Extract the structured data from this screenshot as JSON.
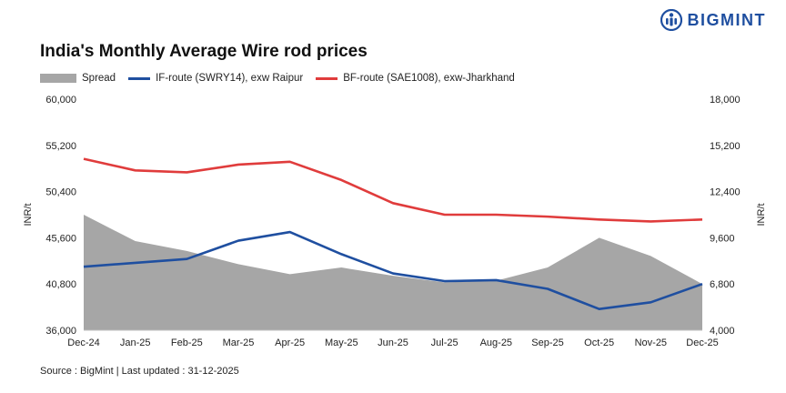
{
  "title": "India's Monthly Average Wire rod prices",
  "brand": {
    "name": "BIGMINT",
    "logo_icon": "bigmint-logo-icon"
  },
  "source": "Source : BigMint | Last updated : 31-12-2025",
  "colors": {
    "spread": "#a6a6a6",
    "if_route": "#1f4fa0",
    "bf_route": "#e03c3c"
  },
  "chart_data": {
    "type": "line",
    "categories": [
      "Dec-24",
      "Jan-25",
      "Feb-25",
      "Mar-25",
      "Apr-25",
      "May-25",
      "Jun-25",
      "Jul-25",
      "Aug-25",
      "Sep-25",
      "Oct-25",
      "Nov-25",
      "Dec-25"
    ],
    "y_left": {
      "label": "INR/t",
      "ticks": [
        "36,000",
        "40,800",
        "45,600",
        "50,400",
        "55,200",
        "60,000"
      ],
      "range": [
        36000,
        60000
      ]
    },
    "y_right": {
      "label": "INR/t",
      "ticks": [
        "4,000",
        "6,800",
        "9,600",
        "12,400",
        "15,200",
        "18,000"
      ],
      "range": [
        4000,
        18000
      ]
    },
    "series": [
      {
        "name": "Spread",
        "kind": "area",
        "axis": "right",
        "values": [
          11000,
          9400,
          8800,
          8000,
          7400,
          7800,
          7300,
          6900,
          7000,
          7800,
          9600,
          8500,
          6800
        ]
      },
      {
        "name": "IF-route (SWRY14), exw Raipur",
        "kind": "line",
        "axis": "left",
        "values": [
          42600,
          43000,
          43400,
          45300,
          46200,
          43900,
          41900,
          41100,
          41200,
          40300,
          38200,
          38900,
          40800
        ]
      },
      {
        "name": "BF-route (SAE1008), exw-Jharkhand",
        "kind": "line",
        "axis": "left",
        "values": [
          53800,
          52600,
          52400,
          53200,
          53500,
          51600,
          49200,
          48000,
          48000,
          47800,
          47500,
          47300,
          47500
        ]
      }
    ],
    "legend": "top-left",
    "grid": false
  }
}
